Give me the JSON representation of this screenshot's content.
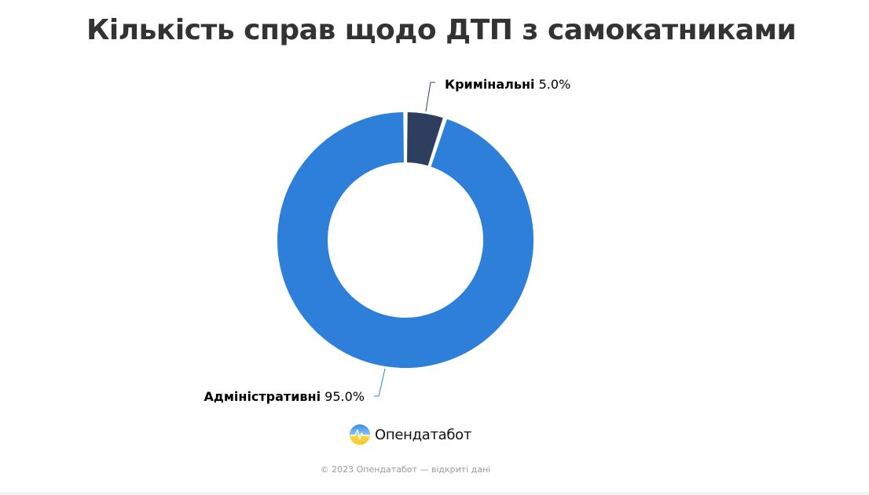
{
  "chart_data": {
    "type": "pie",
    "title": "Кількість справ щодо ДТП з самокатниками",
    "slices": [
      {
        "name": "Кримінальні",
        "value": 5.0,
        "label_value": "5.0%",
        "color": "#2d3e5f"
      },
      {
        "name": "Адміністративні",
        "value": 95.0,
        "label_value": "95.0%",
        "color": "#2d7fd9"
      }
    ]
  },
  "brand": {
    "name": "Опендатабот",
    "logo_icon": "opendatabot-logo-icon"
  },
  "footer": {
    "text": "© 2023 Опендатабот — відкриті дані"
  }
}
